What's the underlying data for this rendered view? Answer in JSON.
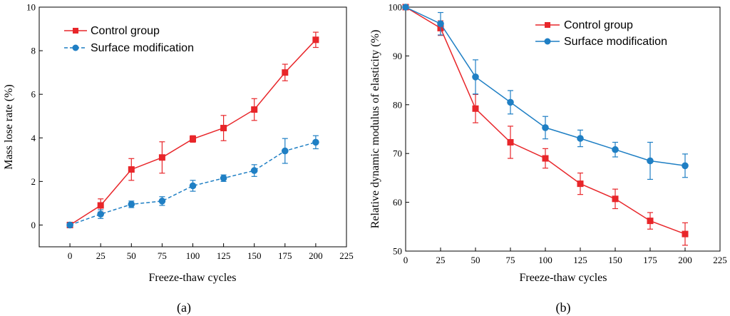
{
  "colors": {
    "control": "#e8262a",
    "surface": "#1f7fc4",
    "axis": "#000000"
  },
  "chart_data": [
    {
      "type": "line",
      "panel": "a",
      "caption": "(a)",
      "xlabel": "Freeze-thaw cycles",
      "ylabel": "Mass lose rate (%)",
      "xlim": [
        -25,
        225
      ],
      "ylim": [
        -1,
        10
      ],
      "xticks": [
        0,
        25,
        50,
        75,
        100,
        125,
        150,
        175,
        200,
        225
      ],
      "yticks": [
        0,
        2,
        4,
        6,
        8,
        10
      ],
      "legend": "top-left",
      "series": [
        {
          "name": "Control group",
          "style": "solid",
          "marker": "square",
          "color_key": "control",
          "x": [
            0,
            25,
            50,
            75,
            100,
            125,
            150,
            175,
            200
          ],
          "y": [
            0,
            0.9,
            2.55,
            3.1,
            3.95,
            4.45,
            5.3,
            7.0,
            8.5
          ],
          "err": [
            0.08,
            0.3,
            0.5,
            0.72,
            0.15,
            0.58,
            0.5,
            0.38,
            0.35
          ]
        },
        {
          "name": "Surface modification",
          "style": "dashed",
          "marker": "circle",
          "color_key": "surface",
          "x": [
            0,
            25,
            50,
            75,
            100,
            125,
            150,
            175,
            200
          ],
          "y": [
            0,
            0.5,
            0.95,
            1.1,
            1.8,
            2.15,
            2.5,
            3.4,
            3.8
          ],
          "err": [
            0.05,
            0.2,
            0.15,
            0.2,
            0.25,
            0.15,
            0.27,
            0.57,
            0.3
          ]
        }
      ]
    },
    {
      "type": "line",
      "panel": "b",
      "caption": "(b)",
      "xlabel": "Freeze-thaw cycles",
      "ylabel": "Relative dynamic modulus of elasticity (%)",
      "xlim": [
        0,
        225
      ],
      "ylim": [
        50,
        100
      ],
      "xticks": [
        0,
        25,
        50,
        75,
        100,
        125,
        150,
        175,
        200,
        225
      ],
      "yticks": [
        50,
        60,
        70,
        80,
        90,
        100
      ],
      "legend": "top-right",
      "series": [
        {
          "name": "Control group",
          "style": "solid",
          "marker": "square",
          "color_key": "control",
          "x": [
            0,
            25,
            50,
            75,
            100,
            125,
            150,
            175,
            200
          ],
          "y": [
            100,
            95.7,
            79.2,
            72.3,
            69.0,
            63.8,
            60.7,
            56.2,
            53.5
          ],
          "err": [
            0,
            1.5,
            2.9,
            3.3,
            2.0,
            2.2,
            2.0,
            1.7,
            2.3
          ]
        },
        {
          "name": "Surface modification",
          "style": "solid",
          "marker": "circle",
          "color_key": "surface",
          "x": [
            0,
            25,
            50,
            75,
            100,
            125,
            150,
            175,
            200
          ],
          "y": [
            100,
            96.6,
            85.7,
            80.5,
            75.3,
            73.1,
            70.8,
            68.5,
            67.5
          ],
          "err": [
            0,
            2.3,
            3.5,
            2.4,
            2.3,
            1.7,
            1.5,
            3.8,
            2.4
          ]
        }
      ]
    }
  ]
}
